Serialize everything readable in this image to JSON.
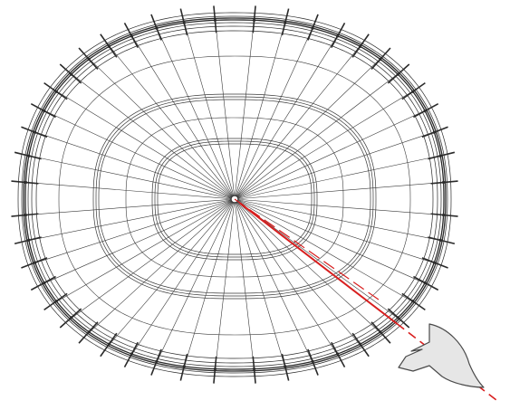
{
  "diagram": {
    "subject": "radial-wireframe-ring-structure",
    "colors": {
      "background": "#ffffff",
      "wire": "#3a3a3a",
      "rim": "#2a2a2a",
      "hub": "#ffffff",
      "ray": "#d81e1e",
      "marker_fill": "#e6e6e6",
      "marker_stroke": "#4a4a4a"
    },
    "spoke_count": 48,
    "elements": [
      {
        "name": "outer-rim-ring",
        "style": "multi-line"
      },
      {
        "name": "middle-ring",
        "style": "multi-line"
      },
      {
        "name": "inner-ring",
        "style": "multi-line"
      },
      {
        "name": "spoke-lines",
        "style": "radial"
      },
      {
        "name": "central-hub",
        "style": "circle"
      },
      {
        "name": "red-ray",
        "style": "solid-then-dashed"
      },
      {
        "name": "arrowhead-marker",
        "style": "filled-shape"
      }
    ]
  }
}
